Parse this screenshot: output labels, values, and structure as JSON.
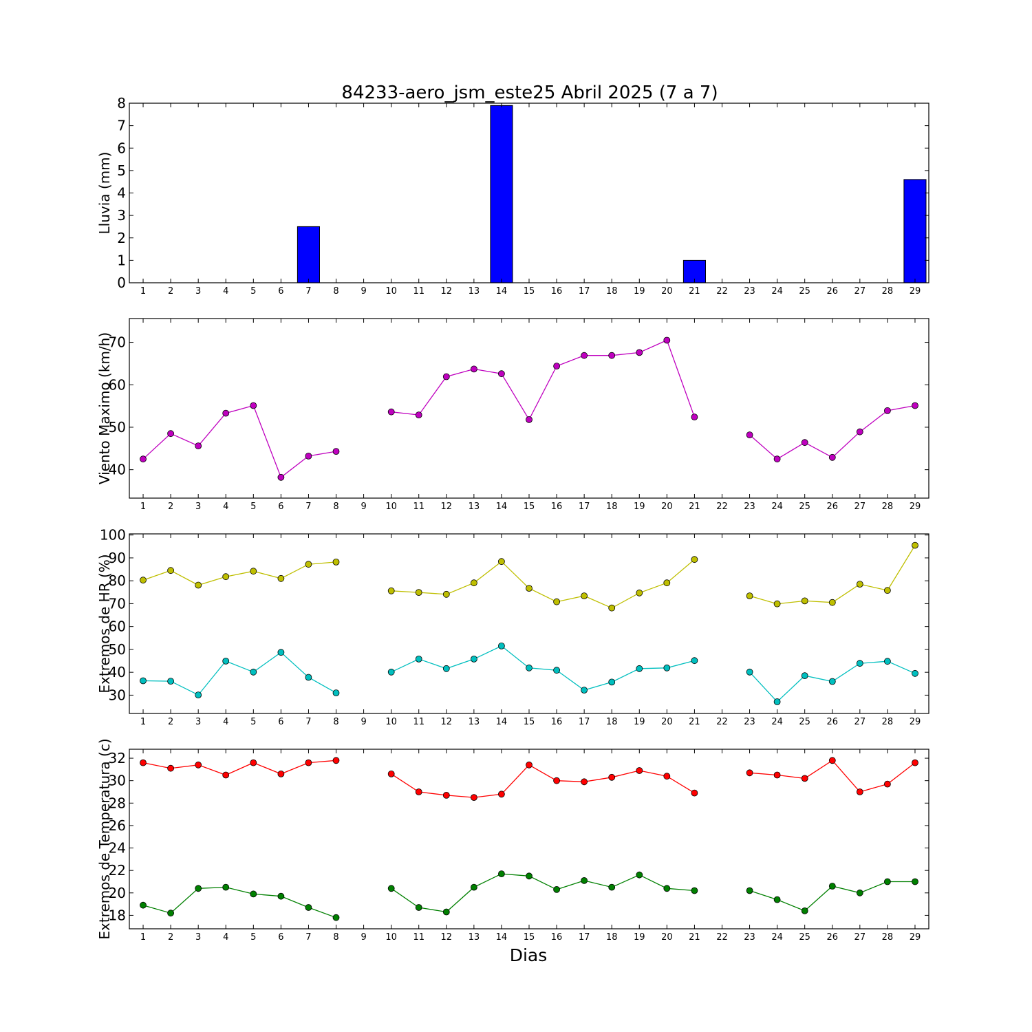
{
  "figure": {
    "title": "84233-aero_jsm_este25 Abril 2025  (7 a 7)",
    "xlabel": "Dias"
  },
  "chart_data": [
    {
      "type": "bar",
      "ylabel": "Lluvia (mm)",
      "ylim": [
        0,
        8
      ],
      "yticks": [
        0,
        1,
        2,
        3,
        4,
        5,
        6,
        7,
        8
      ],
      "xticks": [
        1,
        2,
        3,
        4,
        5,
        6,
        7,
        8,
        9,
        10,
        11,
        12,
        13,
        14,
        15,
        16,
        17,
        18,
        19,
        20,
        21,
        22,
        23,
        24,
        25,
        26,
        27,
        28,
        29
      ],
      "xlim": [
        0.5,
        29.5
      ],
      "x": [
        1,
        2,
        3,
        4,
        5,
        6,
        7,
        8,
        9,
        10,
        11,
        12,
        13,
        14,
        15,
        16,
        17,
        18,
        19,
        20,
        21,
        22,
        23,
        24,
        25,
        26,
        27,
        28,
        29
      ],
      "series": [
        {
          "color": "#0000ff",
          "values": [
            0,
            0,
            0,
            0,
            0,
            0,
            2.5,
            0,
            0,
            0,
            0,
            0,
            0,
            7.9,
            0,
            0,
            0,
            0,
            0,
            0,
            1.0,
            0,
            0,
            0,
            0,
            0,
            0,
            0,
            4.6
          ]
        }
      ]
    },
    {
      "type": "line",
      "ylabel": "Viento Maximo (km/h)",
      "ylim": [
        33.3,
        75.6
      ],
      "yticks": [
        40,
        50,
        60,
        70
      ],
      "xticks": [
        1,
        2,
        3,
        4,
        5,
        6,
        7,
        8,
        9,
        10,
        11,
        12,
        13,
        14,
        15,
        16,
        17,
        18,
        19,
        20,
        21,
        22,
        23,
        24,
        25,
        26,
        27,
        28,
        29
      ],
      "xlim": [
        0.5,
        29.5
      ],
      "x": [
        1,
        2,
        3,
        4,
        5,
        6,
        7,
        8,
        9,
        10,
        11,
        12,
        13,
        14,
        15,
        16,
        17,
        18,
        19,
        20,
        21,
        22,
        23,
        24,
        25,
        26,
        27,
        28,
        29
      ],
      "series": [
        {
          "color": "#bf00bf",
          "values": [
            42.5,
            48.5,
            45.6,
            53.3,
            55.1,
            38.2,
            43.2,
            44.3,
            null,
            53.6,
            52.9,
            61.9,
            63.7,
            62.6,
            51.8,
            64.4,
            66.9,
            66.9,
            67.6,
            70.5,
            52.4,
            null,
            48.2,
            42.5,
            46.4,
            42.9,
            48.9,
            53.9,
            55.1
          ]
        }
      ]
    },
    {
      "type": "line",
      "ylabel": "Extremos de HR (%)",
      "ylim": [
        22.0,
        100.5
      ],
      "yticks": [
        30,
        40,
        50,
        60,
        70,
        80,
        90,
        100
      ],
      "xticks": [
        1,
        2,
        3,
        4,
        5,
        6,
        7,
        8,
        9,
        10,
        11,
        12,
        13,
        14,
        15,
        16,
        17,
        18,
        19,
        20,
        21,
        22,
        23,
        24,
        25,
        26,
        27,
        28,
        29
      ],
      "xlim": [
        0.5,
        29.5
      ],
      "x": [
        1,
        2,
        3,
        4,
        5,
        6,
        7,
        8,
        9,
        10,
        11,
        12,
        13,
        14,
        15,
        16,
        17,
        18,
        19,
        20,
        21,
        22,
        23,
        24,
        25,
        26,
        27,
        28,
        29
      ],
      "series": [
        {
          "color": "#bfbf00",
          "values": [
            80.3,
            84.5,
            78.1,
            81.8,
            84.2,
            81.0,
            87.2,
            88.2,
            null,
            75.6,
            74.9,
            74.1,
            79.1,
            88.4,
            76.7,
            70.8,
            73.4,
            68.1,
            74.7,
            79.1,
            89.3,
            null,
            73.4,
            69.9,
            71.2,
            70.5,
            78.5,
            75.8,
            95.5
          ]
        },
        {
          "color": "#00bfbf",
          "values": [
            36.3,
            36.1,
            30.1,
            44.9,
            40.1,
            48.7,
            37.8,
            31.0,
            null,
            40.1,
            45.8,
            41.6,
            45.8,
            51.5,
            41.9,
            40.9,
            32.2,
            35.7,
            41.6,
            41.9,
            45.1,
            null,
            40.1,
            27.1,
            38.5,
            36.0,
            43.9,
            44.8,
            39.5
          ]
        }
      ]
    },
    {
      "type": "line",
      "ylabel": "Extremos de Temperatura (c)",
      "ylim": [
        16.8,
        32.8
      ],
      "yticks": [
        18,
        20,
        22,
        24,
        26,
        28,
        30,
        32
      ],
      "xticks": [
        1,
        2,
        3,
        4,
        5,
        6,
        7,
        8,
        9,
        10,
        11,
        12,
        13,
        14,
        15,
        16,
        17,
        18,
        19,
        20,
        21,
        22,
        23,
        24,
        25,
        26,
        27,
        28,
        29
      ],
      "xlim": [
        0.5,
        29.5
      ],
      "x": [
        1,
        2,
        3,
        4,
        5,
        6,
        7,
        8,
        9,
        10,
        11,
        12,
        13,
        14,
        15,
        16,
        17,
        18,
        19,
        20,
        21,
        22,
        23,
        24,
        25,
        26,
        27,
        28,
        29
      ],
      "series": [
        {
          "color": "#ff0000",
          "values": [
            31.6,
            31.1,
            31.4,
            30.5,
            31.6,
            30.6,
            31.6,
            31.8,
            null,
            30.6,
            29.0,
            28.7,
            28.5,
            28.8,
            31.4,
            30.0,
            29.9,
            30.3,
            30.9,
            30.4,
            28.9,
            null,
            30.7,
            30.5,
            30.2,
            31.8,
            29.0,
            29.7,
            31.6
          ]
        },
        {
          "color": "#008000",
          "values": [
            18.9,
            18.2,
            20.4,
            20.5,
            19.9,
            19.7,
            18.7,
            17.8,
            null,
            20.4,
            18.7,
            18.3,
            20.5,
            21.7,
            21.5,
            20.3,
            21.1,
            20.5,
            21.6,
            20.4,
            20.2,
            null,
            20.2,
            19.4,
            18.4,
            20.6,
            20.0,
            21.0,
            21.0
          ]
        }
      ]
    }
  ]
}
